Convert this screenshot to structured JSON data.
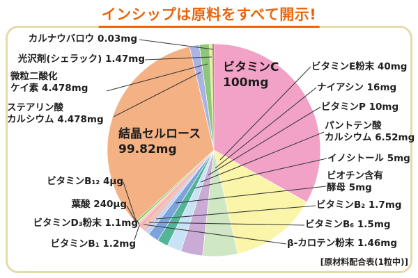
{
  "title": {
    "text": "インシップは原料をすべて開示!"
  },
  "footer": {
    "text": "[原材料配合表(1粒中)]"
  },
  "colors": {
    "title_accent": "#E8650D",
    "panel_border": "#E4DAAB",
    "leader_line": "#3a3a3a"
  },
  "chart_data": {
    "type": "pie",
    "title": "インシップは原料をすべて開示!",
    "footnote": "[原材料配合表(1粒中)]",
    "unit": "mg",
    "total_mg": 300,
    "start_angle_deg": 0,
    "direction": "clockwise",
    "legend_position": "outside-labels",
    "slices": [
      {
        "id": "vitamin-c",
        "name": "ビタミンC",
        "amount": "100mg",
        "value_mg": 100,
        "color": "#F2A2C6",
        "label": "ビタミンC\n100mg",
        "label_placement": "inside"
      },
      {
        "id": "vitamin-e",
        "name": "ビタミンE粉末",
        "amount": "40mg",
        "value_mg": 40,
        "color": "#FAF5A8",
        "label": "ビタミンE粉末 40mg",
        "label_placement": "outside"
      },
      {
        "id": "niacin",
        "name": "ナイアシン",
        "amount": "16mg",
        "value_mg": 16,
        "color": "#CFE7C3",
        "label": "ナイアシン 16mg",
        "label_placement": "outside"
      },
      {
        "id": "vitamin-p",
        "name": "ビタミンP",
        "amount": "10mg",
        "value_mg": 10,
        "color": "#C9ABD6",
        "label": "ビタミンP 10mg",
        "label_placement": "outside"
      },
      {
        "id": "calcium-pantothenate",
        "name": "パントテン酸カルシウム",
        "amount": "6.52mg",
        "value_mg": 6.52,
        "color": "#C7E3F5",
        "label": "パントテン酸\nカルシウム 6.52mg",
        "label_placement": "outside"
      },
      {
        "id": "inositol",
        "name": "イノシトール",
        "amount": "5mg",
        "value_mg": 5,
        "color": "#53B498",
        "label": "イノシトール 5mg",
        "label_placement": "outside"
      },
      {
        "id": "biotin-yeast",
        "name": "ビオチン含有酵母",
        "amount": "5mg",
        "value_mg": 5,
        "color": "#7CA4DA",
        "label": "ビオチン含有\n酵母 5mg",
        "label_placement": "outside"
      },
      {
        "id": "vitamin-b2",
        "name": "ビタミンB₂",
        "amount": "1.7mg",
        "value_mg": 1.7,
        "color": "#B9D6F0",
        "label": "ビタミンB₂ 1.7mg",
        "label_placement": "outside"
      },
      {
        "id": "vitamin-b6",
        "name": "ビタミンB₆",
        "amount": "1.5mg",
        "value_mg": 1.5,
        "color": "#E3C3DC",
        "label": "ビタミンB₆ 1.5mg",
        "label_placement": "outside"
      },
      {
        "id": "beta-carotene",
        "name": "β-カロテン粉末",
        "amount": "1.46mg",
        "value_mg": 1.46,
        "color": "#F6C5A3",
        "label": "β-カロテン粉末 1.46mg",
        "label_placement": "outside"
      },
      {
        "id": "vitamin-b1",
        "name": "ビタミンB₁",
        "amount": "1.2mg",
        "value_mg": 1.2,
        "color": "#F3AEC6",
        "label": "ビタミンB₁ 1.2mg",
        "label_placement": "outside"
      },
      {
        "id": "vitamin-d3",
        "name": "ビタミンD₃粉末",
        "amount": "1.1mg",
        "value_mg": 1.1,
        "color": "#F9CFC2",
        "label": "ビタミンD₃粉末 1.1mg",
        "label_placement": "outside"
      },
      {
        "id": "folic-acid",
        "name": "葉酸",
        "amount": "240μg",
        "value_mg": 0.24,
        "color": "#F0ECB8",
        "label": "葉酸 240μg",
        "label_placement": "outside"
      },
      {
        "id": "vitamin-b12",
        "name": "ビタミンB₁₂",
        "amount": "4μg",
        "value_mg": 0.004,
        "color": "#6FBF63",
        "label": "ビタミンB₁₂ 4μg",
        "label_placement": "outside"
      },
      {
        "id": "crystalline-cellulose",
        "name": "結晶セルロース",
        "amount": "99.82mg",
        "value_mg": 99.82,
        "color": "#F4B183",
        "label": "結晶セルロース\n99.82mg",
        "label_placement": "inside"
      },
      {
        "id": "calcium-stearate",
        "name": "ステアリン酸カルシウム",
        "amount": "4.478mg",
        "value_mg": 4.478,
        "color": "#AAB3E3",
        "label": "ステアリン酸\nカルシウム 4.478mg",
        "label_placement": "outside"
      },
      {
        "id": "silicon-dioxide",
        "name": "微粒二酸化ケイ素",
        "amount": "4.478mg",
        "value_mg": 4.478,
        "color": "#8DC878",
        "label": "微粒二酸化\nケイ素 4.478mg",
        "label_placement": "outside"
      },
      {
        "id": "shellac",
        "name": "光沢剤(シェラック)",
        "amount": "1.47mg",
        "value_mg": 1.47,
        "color": "#EFE9A8",
        "label": "光沢剤(シェラック) 1.47mg",
        "label_placement": "outside"
      },
      {
        "id": "carnauba-wax",
        "name": "カルナウバロウ",
        "amount": "0.03mg",
        "value_mg": 0.03,
        "color": "#9B9B70",
        "label": "カルナウバロウ 0.03mg",
        "label_placement": "outside"
      }
    ]
  }
}
